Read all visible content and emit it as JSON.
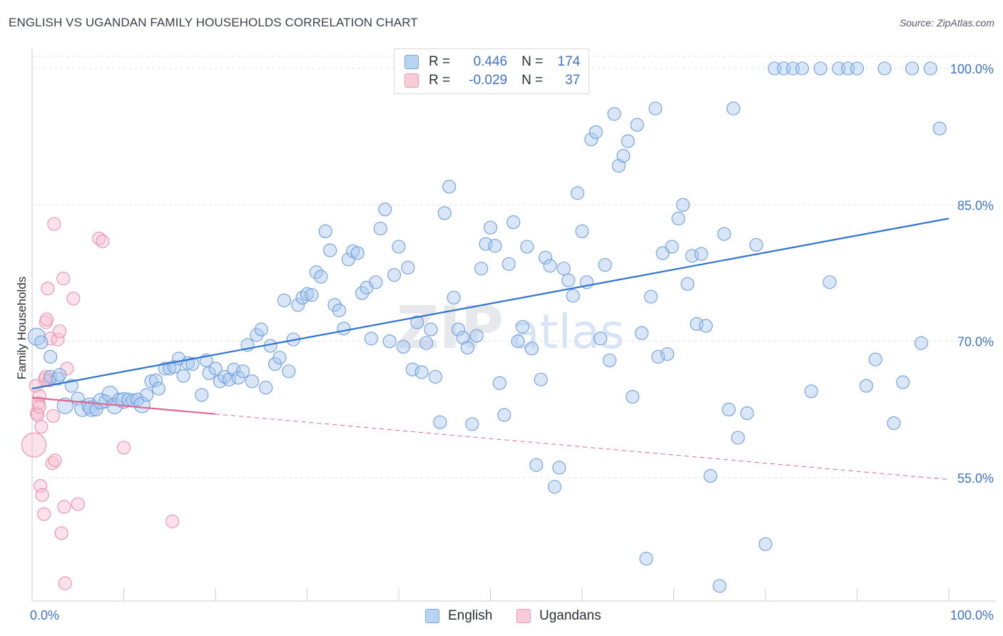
{
  "title": "ENGLISH VS UGANDAN FAMILY HOUSEHOLDS CORRELATION CHART",
  "source": "Source: ZipAtlas.com",
  "watermark": {
    "zip": "ZIP",
    "atlas": "atlas"
  },
  "legend": {
    "r_label": "R =",
    "n_label": "N =",
    "english": {
      "r": "0.446",
      "n": "174"
    },
    "ugandans": {
      "r": "-0.029",
      "n": "37"
    }
  },
  "colors": {
    "english_fill": "#a9c7ef",
    "english_stroke": "#6f9fdc",
    "english_line": "#2f73d0",
    "ugandans_fill": "#f6bfd0",
    "ugandans_stroke": "#ec8fae",
    "ugandans_line": "#e0668f",
    "axis_label": "#3f74c8",
    "grid": "#dfe2e6"
  },
  "chart_data": {
    "type": "scatter",
    "title": "ENGLISH VS UGANDAN FAMILY HOUSEHOLDS CORRELATION CHART",
    "xlabel": "",
    "ylabel": "Family Households",
    "xlim": [
      0,
      100
    ],
    "ylim": [
      40,
      102
    ],
    "x_tick_labels": [
      "0.0%",
      "100.0%"
    ],
    "y_ticks": [
      55,
      70,
      85,
      100
    ],
    "y_tick_labels": [
      "55.0%",
      "70.0%",
      "85.0%",
      "100.0%"
    ],
    "grid": true,
    "series": [
      {
        "name": "English",
        "r": 0.446,
        "n": 174,
        "trend": {
          "x0": 0,
          "y0": 64.8,
          "x1": 100,
          "y1": 83.5
        },
        "points": [
          [
            0.5,
            70.5,
            12
          ],
          [
            1,
            69.9,
            9
          ],
          [
            2,
            68.3,
            9
          ],
          [
            2,
            66.1,
            9
          ],
          [
            2.8,
            65.9,
            9
          ],
          [
            3,
            66.3,
            9
          ],
          [
            3.6,
            62.9,
            11
          ],
          [
            4.3,
            65.1,
            9
          ],
          [
            5,
            63.7,
            9
          ],
          [
            5.5,
            62.6,
            11
          ],
          [
            6.3,
            62.9,
            11
          ],
          [
            6.5,
            62.6,
            11
          ],
          [
            7,
            62.5,
            9
          ],
          [
            7.5,
            63.4,
            11
          ],
          [
            8,
            63.4,
            9
          ],
          [
            8.5,
            64.2,
            11
          ],
          [
            9,
            62.9,
            11
          ],
          [
            9.5,
            63.6,
            9
          ],
          [
            10,
            63.5,
            11
          ],
          [
            10.5,
            63.6,
            9
          ],
          [
            11,
            63.5,
            9
          ],
          [
            11.5,
            63.6,
            9
          ],
          [
            12,
            63,
            11
          ],
          [
            12.5,
            64.1,
            9
          ],
          [
            13,
            65.6,
            9
          ],
          [
            13.5,
            65.7,
            9
          ],
          [
            13.8,
            64.8,
            9
          ],
          [
            14.5,
            67,
            9
          ],
          [
            15,
            67,
            9
          ],
          [
            15.5,
            67.2,
            9
          ],
          [
            16,
            68.1,
            9
          ],
          [
            16.5,
            66.2,
            9
          ],
          [
            17,
            67.6,
            9
          ],
          [
            17.5,
            67.5,
            9
          ],
          [
            18.5,
            64.1,
            9
          ],
          [
            19,
            67.9,
            9
          ],
          [
            19.3,
            66.5,
            9
          ],
          [
            20,
            67,
            9
          ],
          [
            20.5,
            65.6,
            9
          ],
          [
            21,
            66.1,
            9
          ],
          [
            21.5,
            65.8,
            9
          ],
          [
            22,
            66.9,
            9
          ],
          [
            22.5,
            66,
            9
          ],
          [
            23,
            66.7,
            9
          ],
          [
            23.5,
            69.6,
            9
          ],
          [
            24,
            65.6,
            9
          ],
          [
            24.5,
            70.7,
            9
          ],
          [
            25,
            71.3,
            9
          ],
          [
            25.5,
            64.9,
            9
          ],
          [
            26,
            69.5,
            9
          ],
          [
            26.5,
            67.5,
            9
          ],
          [
            27,
            68.2,
            9
          ],
          [
            27.5,
            74.5,
            9
          ],
          [
            28,
            66.7,
            9
          ],
          [
            28.5,
            70.2,
            9
          ],
          [
            29,
            74,
            9
          ],
          [
            29.5,
            74.8,
            9
          ],
          [
            30,
            75.2,
            9
          ],
          [
            30.5,
            75.1,
            9
          ],
          [
            31,
            77.6,
            9
          ],
          [
            31.5,
            77.1,
            9
          ],
          [
            32,
            82.1,
            9
          ],
          [
            32.5,
            80,
            9
          ],
          [
            33,
            74,
            9
          ],
          [
            33.5,
            73.4,
            9
          ],
          [
            34,
            71.4,
            9
          ],
          [
            34.5,
            79,
            9
          ],
          [
            35,
            79.9,
            9
          ],
          [
            35.5,
            79.7,
            9
          ],
          [
            36,
            75.3,
            9
          ],
          [
            36.5,
            75.9,
            9
          ],
          [
            37,
            70.3,
            9
          ],
          [
            37.5,
            76.5,
            9
          ],
          [
            38,
            82.4,
            9
          ],
          [
            38.5,
            84.5,
            9
          ],
          [
            39,
            70,
            9
          ],
          [
            39.5,
            77.3,
            9
          ],
          [
            40,
            80.4,
            9
          ],
          [
            40.5,
            69.4,
            9
          ],
          [
            41,
            78.1,
            9
          ],
          [
            41.5,
            66.9,
            9
          ],
          [
            42,
            72.1,
            9
          ],
          [
            42.5,
            66.6,
            9
          ],
          [
            43,
            69.8,
            9
          ],
          [
            43.5,
            71.3,
            9
          ],
          [
            44,
            66.1,
            9
          ],
          [
            44.5,
            61.1,
            9
          ],
          [
            45,
            84.1,
            9
          ],
          [
            45.5,
            87,
            9
          ],
          [
            46,
            74.8,
            9
          ],
          [
            46.5,
            71.3,
            9
          ],
          [
            47,
            70.4,
            9
          ],
          [
            47.5,
            69.3,
            9
          ],
          [
            48,
            60.9,
            9
          ],
          [
            48.5,
            70.6,
            9
          ],
          [
            49,
            78,
            9
          ],
          [
            49.5,
            80.7,
            9
          ],
          [
            50,
            82.5,
            9
          ],
          [
            50.5,
            80.5,
            9
          ],
          [
            51,
            65.4,
            9
          ],
          [
            51.5,
            61.9,
            9
          ],
          [
            52,
            78.5,
            9
          ],
          [
            52.5,
            83.1,
            9
          ],
          [
            53,
            70,
            9
          ],
          [
            53.5,
            71.6,
            9
          ],
          [
            54,
            80.4,
            9
          ],
          [
            54.5,
            69.2,
            9
          ],
          [
            55,
            56.4,
            9
          ],
          [
            55.5,
            65.8,
            9
          ],
          [
            56,
            79.2,
            9
          ],
          [
            56.5,
            78.3,
            9
          ],
          [
            57,
            54,
            9
          ],
          [
            57.5,
            56.1,
            9
          ],
          [
            58,
            78,
            9
          ],
          [
            58.5,
            76.7,
            9
          ],
          [
            59,
            75,
            9
          ],
          [
            59.5,
            86.3,
            9
          ],
          [
            60,
            82.1,
            9
          ],
          [
            60.5,
            76.5,
            9
          ],
          [
            61,
            92.2,
            9
          ],
          [
            61.5,
            93,
            9
          ],
          [
            62,
            70.3,
            9
          ],
          [
            62.5,
            78.4,
            9
          ],
          [
            63,
            67.9,
            9
          ],
          [
            63.5,
            95,
            9
          ],
          [
            64,
            89.3,
            9
          ],
          [
            64.5,
            90.4,
            9
          ],
          [
            65,
            92,
            9
          ],
          [
            65.5,
            63.9,
            9
          ],
          [
            66,
            93.8,
            9
          ],
          [
            66.5,
            70.9,
            9
          ],
          [
            67,
            46.1,
            9
          ],
          [
            67.5,
            74.9,
            9
          ],
          [
            68,
            95.6,
            9
          ],
          [
            68.3,
            68.3,
            9
          ],
          [
            68.8,
            79.7,
            9
          ],
          [
            69.3,
            68.6,
            9
          ],
          [
            69.8,
            80.4,
            9
          ],
          [
            70.5,
            83.5,
            9
          ],
          [
            71,
            85,
            9
          ],
          [
            71.5,
            76.3,
            9
          ],
          [
            72,
            79.4,
            9
          ],
          [
            72.5,
            71.9,
            9
          ],
          [
            73,
            79.6,
            9
          ],
          [
            73.5,
            71.7,
            9
          ],
          [
            74,
            55.2,
            9
          ],
          [
            75,
            43.1,
            9
          ],
          [
            75.5,
            81.8,
            9
          ],
          [
            76,
            62.5,
            9
          ],
          [
            76.5,
            95.6,
            9
          ],
          [
            77,
            59.4,
            9
          ],
          [
            78,
            62.1,
            9
          ],
          [
            79,
            80.6,
            9
          ],
          [
            80,
            47.7,
            9
          ],
          [
            81,
            100,
            9
          ],
          [
            82,
            100,
            9
          ],
          [
            83,
            100,
            9
          ],
          [
            84,
            100,
            9
          ],
          [
            85,
            64.5,
            9
          ],
          [
            86,
            100,
            9
          ],
          [
            87,
            76.5,
            9
          ],
          [
            88,
            100,
            9
          ],
          [
            89,
            100,
            9
          ],
          [
            90,
            100,
            9
          ],
          [
            91,
            65.1,
            9
          ],
          [
            92,
            68,
            9
          ],
          [
            93,
            100,
            9
          ],
          [
            94,
            61,
            9
          ],
          [
            95,
            65.5,
            9
          ],
          [
            96,
            100,
            9
          ],
          [
            97,
            69.8,
            9
          ],
          [
            98,
            100,
            9
          ],
          [
            99,
            93.4,
            9
          ]
        ]
      },
      {
        "name": "Ugandans",
        "r": -0.029,
        "n": 37,
        "trend": {
          "x0": 0,
          "y0": 63.8,
          "x1": 100,
          "y1": 54.8,
          "solid_until": 20
        },
        "points": [
          [
            0.2,
            58.6,
            17
          ],
          [
            0.4,
            65.1,
            9
          ],
          [
            0.5,
            62.1,
            9
          ],
          [
            0.6,
            61.9,
            9
          ],
          [
            0.7,
            63.2,
            9
          ],
          [
            0.8,
            64,
            9
          ],
          [
            0.8,
            62.8,
            9
          ],
          [
            0.9,
            54.1,
            9
          ],
          [
            1,
            60.6,
            9
          ],
          [
            1.1,
            53.1,
            9
          ],
          [
            1.3,
            51,
            9
          ],
          [
            1.4,
            65.8,
            9
          ],
          [
            1.5,
            66.1,
            9
          ],
          [
            1.5,
            72.1,
            9
          ],
          [
            1.6,
            72.4,
            9
          ],
          [
            1.7,
            75.8,
            9
          ],
          [
            1.9,
            65.7,
            9
          ],
          [
            2,
            70.3,
            9
          ],
          [
            2.2,
            56.6,
            9
          ],
          [
            2.3,
            61.8,
            9
          ],
          [
            2.4,
            82.9,
            9
          ],
          [
            2.5,
            56.9,
            9
          ],
          [
            2.8,
            70.2,
            9
          ],
          [
            3,
            71.1,
            9
          ],
          [
            3.2,
            48.9,
            9
          ],
          [
            3.4,
            76.9,
            9
          ],
          [
            3.5,
            51.8,
            9
          ],
          [
            3.6,
            43.4,
            9
          ],
          [
            3.8,
            67,
            9
          ],
          [
            4.5,
            74.7,
            9
          ],
          [
            5.0,
            52.1,
            9
          ],
          [
            7.3,
            81.3,
            9
          ],
          [
            7.7,
            81,
            9
          ],
          [
            10,
            58.3,
            9
          ],
          [
            15.3,
            50.2,
            9
          ]
        ]
      }
    ]
  }
}
